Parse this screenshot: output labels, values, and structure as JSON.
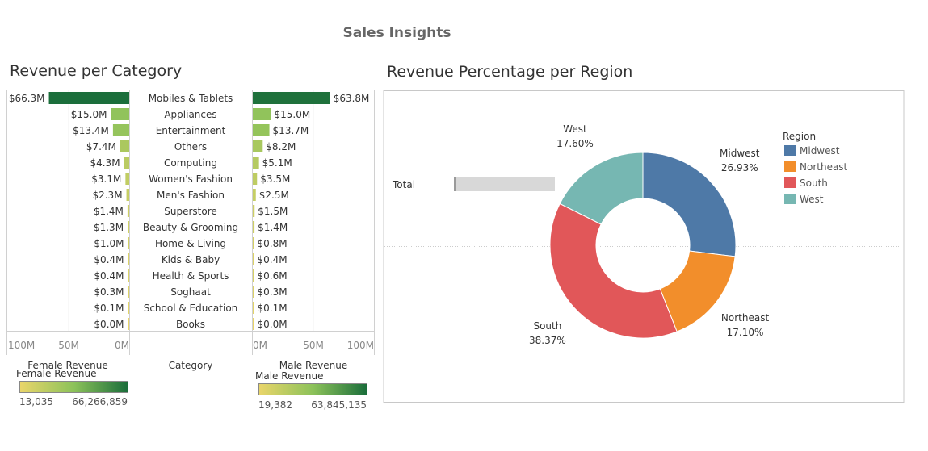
{
  "dashboard": {
    "title": "Sales Insights"
  },
  "revenue_per_category": {
    "title": "Revenue per Category",
    "category_header": "Category",
    "female": {
      "header": "Female Revenue",
      "axis_ticks": [
        "100M",
        "50M",
        "0M"
      ],
      "legend": {
        "title": "Female Revenue",
        "min_label": "13,035",
        "max_label": "66,266,859",
        "min": 13035,
        "max": 66266859
      }
    },
    "male": {
      "header": "Male Revenue",
      "axis_ticks": [
        "0M",
        "50M",
        "100M"
      ],
      "legend": {
        "title": "Male Revenue",
        "min_label": "19,382",
        "max_label": "63,845,135",
        "min": 19382,
        "max": 63845135
      }
    },
    "colors": {
      "low": "#e9d56a",
      "mid": "#8cc25a",
      "high": "#1b6e3b"
    }
  },
  "revenue_per_region": {
    "title": "Revenue Percentage per Region",
    "total_label": "Total",
    "legend_title": "Region"
  },
  "chart_data": [
    {
      "type": "bar",
      "xlim": [
        0,
        100
      ],
      "categories": [
        "Mobiles & Tablets",
        "Appliances",
        "Entertainment",
        "Others",
        "Computing",
        "Women's Fashion",
        "Men's Fashion",
        "Superstore",
        "Beauty & Grooming",
        "Home & Living",
        "Kids & Baby",
        "Health & Sports",
        "Soghaat",
        "School & Education",
        "Books"
      ],
      "series": [
        {
          "name": "Female Revenue",
          "values": [
            66.3,
            15.0,
            13.4,
            7.4,
            4.3,
            3.1,
            2.3,
            1.4,
            1.3,
            1.0,
            0.4,
            0.4,
            0.3,
            0.1,
            0.0
          ],
          "labels": [
            "$66.3M",
            "$15.0M",
            "$13.4M",
            "$7.4M",
            "$4.3M",
            "$3.1M",
            "$2.3M",
            "$1.4M",
            "$1.3M",
            "$1.0M",
            "$0.4M",
            "$0.4M",
            "$0.3M",
            "$0.1M",
            "$0.0M"
          ]
        },
        {
          "name": "Male Revenue",
          "values": [
            63.8,
            15.0,
            13.7,
            8.2,
            5.1,
            3.5,
            2.5,
            1.5,
            1.4,
            0.8,
            0.4,
            0.6,
            0.3,
            0.1,
            0.0
          ],
          "labels": [
            "$63.8M",
            "$15.0M",
            "$13.7M",
            "$8.2M",
            "$5.1M",
            "$3.5M",
            "$2.5M",
            "$1.5M",
            "$1.4M",
            "$0.8M",
            "$0.4M",
            "$0.6M",
            "$0.3M",
            "$0.1M",
            "$0.0M"
          ]
        }
      ]
    },
    {
      "type": "pie",
      "labels": [
        "Midwest",
        "Northeast",
        "South",
        "West"
      ],
      "values": [
        26.93,
        17.1,
        38.37,
        17.6
      ],
      "value_labels": [
        "26.93%",
        "17.10%",
        "38.37%",
        "17.60%"
      ],
      "colors": [
        "#4e79a7",
        "#f28e2b",
        "#e15759",
        "#76b7b2"
      ],
      "legend": "right"
    }
  ]
}
